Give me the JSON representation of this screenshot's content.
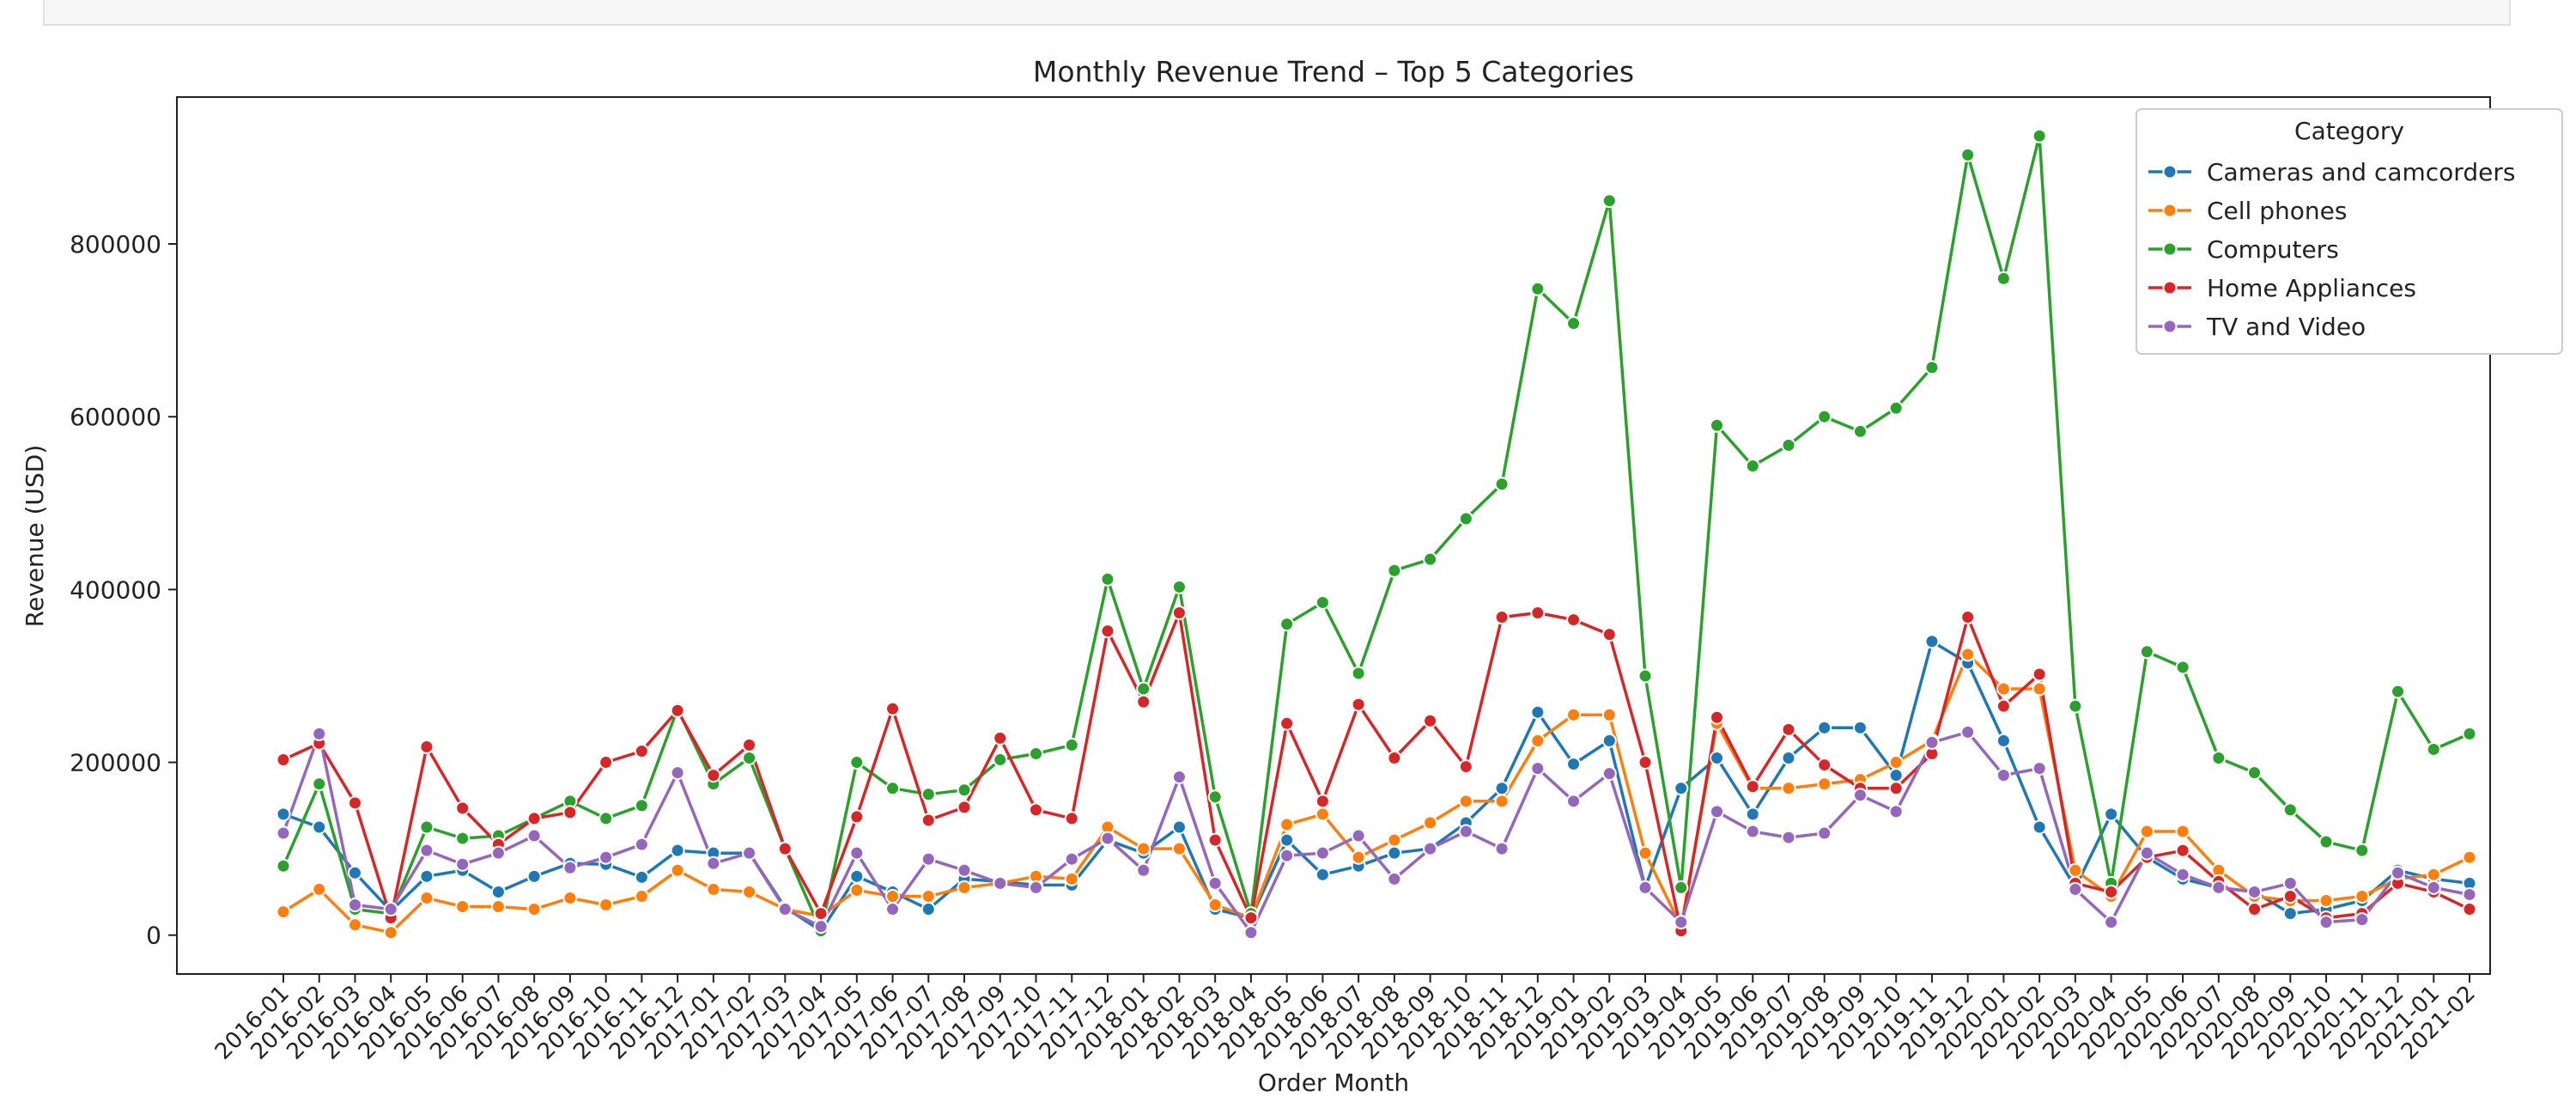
{
  "chart_data": {
    "type": "line",
    "title": "Monthly Revenue Trend – Top 5 Categories",
    "xlabel": "Order Month",
    "ylabel": "Revenue (USD)",
    "ylim": [
      -45000,
      970000
    ],
    "yticks": [
      0,
      200000,
      400000,
      600000,
      800000
    ],
    "ytick_labels": [
      "0",
      "200000",
      "400000",
      "600000",
      "800000"
    ],
    "grid": false,
    "legend": {
      "title": "Category",
      "placement": "top-right"
    },
    "categories": [
      "2016-01",
      "2016-02",
      "2016-03",
      "2016-04",
      "2016-05",
      "2016-06",
      "2016-07",
      "2016-08",
      "2016-09",
      "2016-10",
      "2016-11",
      "2016-12",
      "2017-01",
      "2017-02",
      "2017-03",
      "2017-04",
      "2017-05",
      "2017-06",
      "2017-07",
      "2017-08",
      "2017-09",
      "2017-10",
      "2017-11",
      "2017-12",
      "2018-01",
      "2018-02",
      "2018-03",
      "2018-04",
      "2018-05",
      "2018-06",
      "2018-07",
      "2018-08",
      "2018-09",
      "2018-10",
      "2018-11",
      "2018-12",
      "2019-01",
      "2019-02",
      "2019-03",
      "2019-04",
      "2019-05",
      "2019-06",
      "2019-07",
      "2019-08",
      "2019-09",
      "2019-10",
      "2019-11",
      "2019-12",
      "2020-01",
      "2020-02",
      "2020-03",
      "2020-04",
      "2020-05",
      "2020-06",
      "2020-07",
      "2020-08",
      "2020-09",
      "2020-10",
      "2020-11",
      "2020-12",
      "2021-01",
      "2021-02"
    ],
    "series": [
      {
        "name": "Cameras and camcorders",
        "color": "#1f77b4",
        "values": [
          140000,
          125000,
          72000,
          28000,
          68000,
          75000,
          50000,
          68000,
          83000,
          82000,
          67000,
          98000,
          95000,
          95000,
          32000,
          5000,
          68000,
          50000,
          30000,
          65000,
          62000,
          58000,
          58000,
          110000,
          95000,
          125000,
          30000,
          20000,
          110000,
          70000,
          80000,
          95000,
          100000,
          130000,
          170000,
          258000,
          198000,
          225000,
          55000,
          170000,
          205000,
          140000,
          205000,
          240000,
          240000,
          185000,
          340000,
          315000,
          225000,
          125000,
          55000,
          140000,
          90000,
          65000,
          55000,
          50000,
          25000,
          30000,
          40000,
          75000,
          65000,
          60000
        ]
      },
      {
        "name": "Cell phones",
        "color": "#ff7f0e",
        "values": [
          27000,
          53000,
          12000,
          3000,
          43000,
          33000,
          33000,
          30000,
          43000,
          35000,
          45000,
          75000,
          53000,
          50000,
          30000,
          22000,
          52000,
          45000,
          45000,
          55000,
          60000,
          68000,
          65000,
          125000,
          100000,
          100000,
          35000,
          20000,
          128000,
          140000,
          90000,
          110000,
          130000,
          155000,
          155000,
          225000,
          255000,
          255000,
          95000,
          10000,
          245000,
          170000,
          170000,
          175000,
          180000,
          200000,
          225000,
          325000,
          285000,
          285000,
          75000,
          45000,
          120000,
          120000,
          75000,
          45000,
          40000,
          40000,
          45000,
          65000,
          70000,
          90000
        ]
      },
      {
        "name": "Computers",
        "color": "#2ca02c",
        "values": [
          80000,
          175000,
          30000,
          25000,
          125000,
          112000,
          115000,
          135000,
          155000,
          135000,
          150000,
          262000,
          175000,
          205000,
          100000,
          5000,
          200000,
          170000,
          163000,
          168000,
          203000,
          210000,
          220000,
          412000,
          285000,
          403000,
          160000,
          25000,
          360000,
          385000,
          303000,
          422000,
          435000,
          482000,
          522000,
          748000,
          708000,
          850000,
          300000,
          55000,
          590000,
          543000,
          567000,
          600000,
          583000,
          610000,
          657000,
          903000,
          760000,
          925000,
          265000,
          60000,
          328000,
          310000,
          205000,
          188000,
          145000,
          108000,
          98000,
          282000,
          215000,
          233000
        ]
      },
      {
        "name": "Home Appliances",
        "color": "#d62728",
        "values": [
          203000,
          222000,
          153000,
          20000,
          218000,
          147000,
          105000,
          135000,
          142000,
          200000,
          213000,
          260000,
          185000,
          220000,
          100000,
          25000,
          137000,
          262000,
          133000,
          148000,
          228000,
          145000,
          135000,
          352000,
          270000,
          373000,
          110000,
          20000,
          245000,
          155000,
          267000,
          205000,
          248000,
          195000,
          368000,
          373000,
          365000,
          348000,
          200000,
          5000,
          252000,
          172000,
          238000,
          197000,
          170000,
          170000,
          210000,
          368000,
          265000,
          302000,
          60000,
          50000,
          90000,
          98000,
          62000,
          30000,
          45000,
          20000,
          25000,
          60000,
          50000,
          30000
        ]
      },
      {
        "name": "TV and Video",
        "color": "#9467bd",
        "values": [
          118000,
          233000,
          35000,
          30000,
          98000,
          82000,
          95000,
          115000,
          78000,
          90000,
          105000,
          188000,
          83000,
          95000,
          30000,
          10000,
          95000,
          30000,
          88000,
          75000,
          60000,
          55000,
          88000,
          112000,
          75000,
          183000,
          60000,
          3000,
          92000,
          95000,
          115000,
          65000,
          100000,
          120000,
          100000,
          193000,
          155000,
          187000,
          55000,
          15000,
          143000,
          120000,
          113000,
          118000,
          162000,
          143000,
          223000,
          235000,
          185000,
          193000,
          53000,
          15000,
          95000,
          70000,
          55000,
          50000,
          60000,
          15000,
          18000,
          72000,
          55000,
          47000
        ]
      }
    ]
  }
}
